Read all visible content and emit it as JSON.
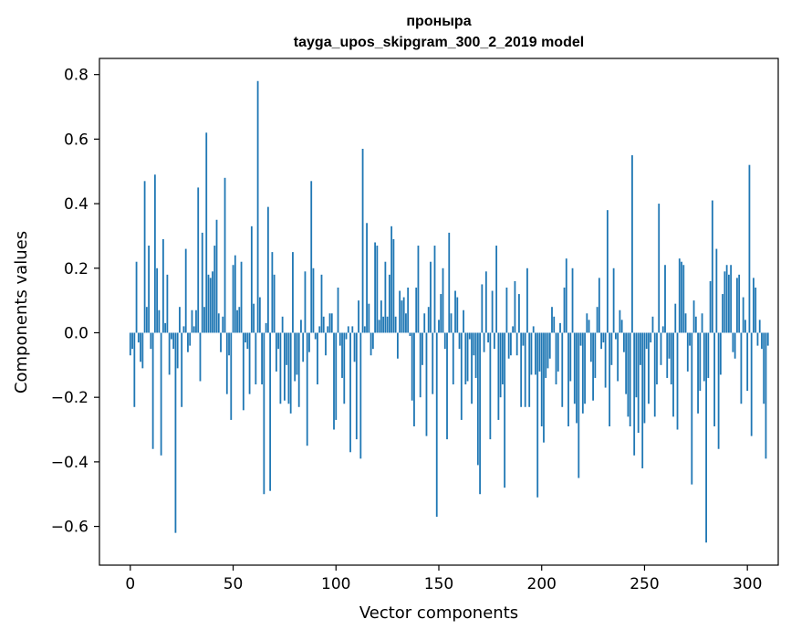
{
  "chart_data": {
    "type": "bar",
    "title_line1": "проныра",
    "title_line2": "tayga_upos_skipgram_300_2_2019 model",
    "xlabel": "Vector components",
    "ylabel": "Components values",
    "xlim": [
      -15,
      315
    ],
    "ylim": [
      -0.72,
      0.85
    ],
    "x_ticks": [
      0,
      50,
      100,
      150,
      200,
      250,
      300
    ],
    "x_tick_labels": [
      "0",
      "50",
      "100",
      "150",
      "200",
      "250",
      "300"
    ],
    "y_ticks": [
      -0.6,
      -0.4,
      -0.2,
      0.0,
      0.2,
      0.4,
      0.6,
      0.8
    ],
    "y_tick_labels": [
      "−0.6",
      "−0.4",
      "−0.2",
      "0.0",
      "0.2",
      "0.4",
      "0.6",
      "0.8"
    ],
    "bar_color": "#1f77b4",
    "grid": false,
    "values": [
      -0.07,
      -0.05,
      -0.23,
      0.22,
      -0.03,
      -0.09,
      -0.11,
      0.47,
      0.08,
      0.27,
      -0.05,
      -0.36,
      0.49,
      0.2,
      0.07,
      -0.38,
      0.29,
      0.03,
      0.18,
      -0.13,
      -0.02,
      -0.05,
      -0.62,
      -0.11,
      0.08,
      -0.23,
      0.02,
      0.26,
      -0.06,
      -0.04,
      0.07,
      0.02,
      0.07,
      0.45,
      -0.15,
      0.31,
      0.08,
      0.62,
      0.18,
      0.17,
      0.19,
      0.27,
      0.35,
      0.06,
      -0.06,
      0.05,
      0.48,
      -0.19,
      -0.07,
      -0.27,
      0.21,
      0.24,
      0.07,
      0.08,
      0.22,
      -0.24,
      -0.03,
      -0.05,
      -0.19,
      0.33,
      0.09,
      -0.16,
      0.78,
      0.11,
      -0.16,
      -0.5,
      0.03,
      0.39,
      -0.49,
      0.25,
      0.18,
      -0.12,
      -0.05,
      -0.22,
      0.05,
      -0.21,
      -0.1,
      -0.22,
      -0.25,
      0.25,
      -0.15,
      -0.13,
      -0.23,
      0.04,
      -0.09,
      0.19,
      -0.35,
      -0.06,
      0.47,
      0.2,
      -0.02,
      -0.16,
      0.02,
      0.18,
      0.05,
      -0.07,
      0.02,
      0.06,
      0.06,
      -0.3,
      -0.27,
      0.14,
      -0.04,
      -0.14,
      -0.22,
      -0.02,
      0.02,
      -0.37,
      0.02,
      -0.09,
      -0.33,
      0.1,
      -0.39,
      0.57,
      0.02,
      0.34,
      0.09,
      -0.07,
      -0.05,
      0.28,
      0.27,
      0.04,
      0.1,
      0.05,
      0.22,
      0.05,
      0.18,
      0.33,
      0.29,
      0.05,
      -0.08,
      0.13,
      0.1,
      0.11,
      0.06,
      0.14,
      -0.01,
      -0.21,
      -0.29,
      0.14,
      0.27,
      -0.2,
      -0.1,
      0.06,
      -0.32,
      0.08,
      0.22,
      -0.19,
      0.27,
      -0.57,
      0.04,
      0.12,
      0.2,
      -0.05,
      -0.33,
      0.31,
      0.06,
      -0.16,
      0.13,
      0.11,
      -0.05,
      -0.27,
      0.07,
      -0.16,
      -0.15,
      -0.02,
      -0.22,
      -0.07,
      -0.14,
      -0.41,
      -0.5,
      0.15,
      -0.06,
      0.19,
      -0.03,
      -0.33,
      0.13,
      -0.05,
      0.27,
      -0.27,
      -0.2,
      -0.16,
      -0.48,
      0.14,
      -0.08,
      -0.07,
      0.02,
      0.16,
      -0.07,
      0.12,
      -0.23,
      -0.04,
      -0.23,
      0.2,
      -0.23,
      -0.13,
      0.02,
      -0.13,
      -0.51,
      -0.12,
      -0.29,
      -0.34,
      -0.14,
      -0.11,
      -0.08,
      0.08,
      0.05,
      -0.16,
      -0.12,
      0.03,
      -0.23,
      0.14,
      0.23,
      -0.29,
      -0.15,
      0.2,
      -0.22,
      -0.28,
      -0.45,
      -0.04,
      -0.25,
      -0.22,
      0.06,
      0.04,
      -0.09,
      -0.21,
      -0.14,
      0.08,
      0.17,
      -0.05,
      -0.03,
      -0.17,
      0.38,
      -0.29,
      -0.1,
      0.2,
      -0.02,
      -0.15,
      0.07,
      0.04,
      -0.06,
      -0.19,
      -0.26,
      -0.29,
      0.55,
      -0.38,
      -0.2,
      -0.31,
      -0.1,
      -0.42,
      -0.28,
      -0.05,
      -0.22,
      -0.03,
      0.05,
      -0.26,
      -0.16,
      0.4,
      -0.1,
      0.02,
      0.21,
      -0.14,
      -0.08,
      -0.16,
      -0.26,
      0.09,
      -0.3,
      0.23,
      0.22,
      0.21,
      0.06,
      -0.12,
      -0.04,
      -0.47,
      0.1,
      0.05,
      -0.25,
      -0.18,
      0.06,
      -0.15,
      -0.65,
      -0.14,
      0.16,
      0.41,
      -0.29,
      0.26,
      -0.36,
      -0.13,
      0.12,
      0.19,
      0.21,
      0.18,
      0.21,
      -0.06,
      -0.08,
      0.17,
      0.18,
      -0.22,
      0.11,
      0.04,
      -0.18,
      0.52,
      -0.32,
      0.17,
      0.14,
      -0.04,
      0.04,
      -0.05,
      -0.22,
      -0.39,
      -0.04
    ]
  }
}
